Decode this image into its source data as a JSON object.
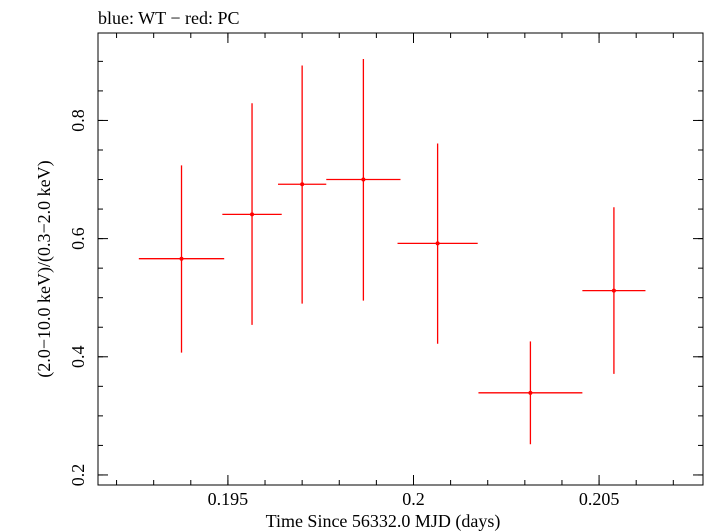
{
  "chart_data": {
    "type": "scatter",
    "title": "blue: WT − red: PC",
    "xlabel": "Time Since 56332.0 MJD (days)",
    "ylabel": "(2.0−10.0 keV)/(0.3−2.0 keV)",
    "xlim": [
      0.1915,
      0.2078
    ],
    "ylim": [
      0.183,
      0.948
    ],
    "x_ticks": [
      {
        "value": 0.195,
        "label": "0.195"
      },
      {
        "value": 0.2,
        "label": "0.2"
      },
      {
        "value": 0.205,
        "label": "0.205"
      }
    ],
    "y_ticks": [
      {
        "value": 0.2,
        "label": "0.2"
      },
      {
        "value": 0.4,
        "label": "0.4"
      },
      {
        "value": 0.6,
        "label": "0.6"
      },
      {
        "value": 0.8,
        "label": "0.8"
      }
    ],
    "series": [
      {
        "name": "PC",
        "color": "#ff0000",
        "points": [
          {
            "x": 0.19375,
            "y": 0.566,
            "xerr": 0.00115,
            "yerr_low": 0.159,
            "yerr_high": 0.158
          },
          {
            "x": 0.19565,
            "y": 0.641,
            "xerr": 0.0008,
            "yerr_low": 0.187,
            "yerr_high": 0.188
          },
          {
            "x": 0.197,
            "y": 0.692,
            "xerr": 0.00065,
            "yerr_low": 0.202,
            "yerr_high": 0.201
          },
          {
            "x": 0.19865,
            "y": 0.7,
            "xerr": 0.001,
            "yerr_low": 0.205,
            "yerr_high": 0.204
          },
          {
            "x": 0.20065,
            "y": 0.592,
            "xerr": 0.00108,
            "yerr_low": 0.17,
            "yerr_high": 0.169
          },
          {
            "x": 0.20315,
            "y": 0.339,
            "xerr": 0.0014,
            "yerr_low": 0.087,
            "yerr_high": 0.087
          },
          {
            "x": 0.2054,
            "y": 0.512,
            "xerr": 0.00085,
            "yerr_low": 0.141,
            "yerr_high": 0.141
          }
        ]
      }
    ],
    "minor_tick_step": 0.001,
    "minor_y_tick_step": 0.05,
    "grid": false
  }
}
